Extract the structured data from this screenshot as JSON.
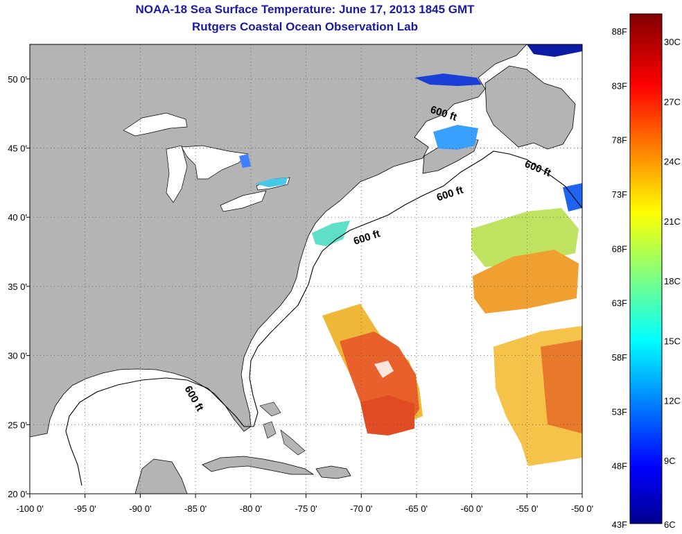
{
  "title": "NOAA-18 Sea Surface Temperature:  June 17, 2013 1845 GMT",
  "subtitle": "Rutgers Coastal Ocean Observation Lab",
  "map": {
    "lon_range": [
      -100,
      -50
    ],
    "lat_range": [
      20,
      52.5
    ],
    "lon_ticks": [
      {
        "value": -100,
        "label": "-100 0'"
      },
      {
        "value": -95,
        "label": "-95 0'"
      },
      {
        "value": -90,
        "label": "-90 0'"
      },
      {
        "value": -85,
        "label": "-85 0'"
      },
      {
        "value": -80,
        "label": "-80 0'"
      },
      {
        "value": -75,
        "label": "-75 0'"
      },
      {
        "value": -70,
        "label": "-70 0'"
      },
      {
        "value": -65,
        "label": "-65 0'"
      },
      {
        "value": -60,
        "label": "-60 0'"
      },
      {
        "value": -55,
        "label": "-55 0'"
      },
      {
        "value": -50,
        "label": "-50 0'"
      }
    ],
    "lat_ticks": [
      {
        "value": 50,
        "label": "50 0'"
      },
      {
        "value": 45,
        "label": "45 0'"
      },
      {
        "value": 40,
        "label": "40 0'"
      },
      {
        "value": 35,
        "label": "35 0'"
      },
      {
        "value": 30,
        "label": "30 0'"
      },
      {
        "value": 25,
        "label": "25 0'"
      },
      {
        "value": 20,
        "label": "20 0'"
      }
    ],
    "grid": "dotted",
    "land_color": "#b4b4b4",
    "ocean_color": "#ffffff",
    "contour_labels": [
      "600 ft",
      "600 ft",
      "600 ft",
      "600 ft",
      "600 ft"
    ]
  },
  "colorbar": {
    "colormap": "jet",
    "fahrenheit_labels": [
      "88F",
      "83F",
      "78F",
      "73F",
      "68F",
      "63F",
      "58F",
      "53F",
      "48F",
      "43F"
    ],
    "celsius_labels": [
      "30C",
      "27C",
      "24C",
      "21C",
      "18C",
      "15C",
      "12C",
      "9C",
      "6C"
    ]
  }
}
